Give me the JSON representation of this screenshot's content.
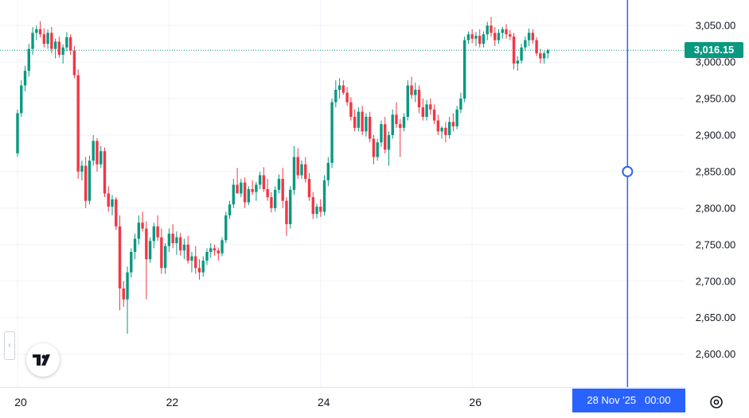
{
  "chart_data": {
    "type": "candlestick",
    "y_ticks": [
      "3,050.00",
      "3,000.00",
      "2,950.00",
      "2,900.00",
      "2,850.00",
      "2,800.00",
      "2,750.00",
      "2,700.00",
      "2,650.00",
      "2,600.00"
    ],
    "y_tick_values": [
      3050,
      3000,
      2950,
      2900,
      2850,
      2800,
      2750,
      2700,
      2650,
      2600
    ],
    "ylim": [
      2555,
      3085
    ],
    "x_ticks": [
      "20",
      "22",
      "24",
      "26"
    ],
    "x_tick_positions": [
      0,
      40,
      80,
      120
    ],
    "current_price": 3016.15,
    "current_price_label": "3,016.15",
    "crosshair": {
      "x_index": 161,
      "price": 2850,
      "date_label": "28 Nov '25",
      "time_label": "00:00"
    },
    "colors": {
      "up": "#089981",
      "down": "#f23645",
      "crosshair": "#2962ff",
      "grid": "#f0f3fa"
    },
    "candles": [
      [
        2875,
        2935,
        2870,
        2930
      ],
      [
        2930,
        2975,
        2925,
        2968
      ],
      [
        2968,
        2995,
        2960,
        2988
      ],
      [
        2988,
        3025,
        2980,
        3018
      ],
      [
        3018,
        3048,
        3010,
        3040
      ],
      [
        3040,
        3050,
        3030,
        3045
      ],
      [
        3045,
        3056,
        3034,
        3038
      ],
      [
        3038,
        3046,
        3020,
        3025
      ],
      [
        3025,
        3045,
        3018,
        3040
      ],
      [
        3040,
        3048,
        3012,
        3018
      ],
      [
        3018,
        3032,
        3005,
        3028
      ],
      [
        3028,
        3035,
        3006,
        3010
      ],
      [
        3010,
        3024,
        2998,
        3020
      ],
      [
        3020,
        3041,
        3015,
        3034
      ],
      [
        3034,
        3038,
        3010,
        3016
      ],
      [
        3016,
        3022,
        2978,
        2982
      ],
      [
        2982,
        2990,
        2840,
        2850
      ],
      [
        2850,
        2865,
        2838,
        2858
      ],
      [
        2858,
        2870,
        2800,
        2810
      ],
      [
        2810,
        2872,
        2805,
        2865
      ],
      [
        2865,
        2900,
        2858,
        2892
      ],
      [
        2892,
        2896,
        2850,
        2860
      ],
      [
        2860,
        2885,
        2855,
        2878
      ],
      [
        2878,
        2883,
        2815,
        2820
      ],
      [
        2820,
        2830,
        2795,
        2802
      ],
      [
        2802,
        2818,
        2790,
        2812
      ],
      [
        2812,
        2815,
        2770,
        2775
      ],
      [
        2775,
        2790,
        2660,
        2690
      ],
      [
        2690,
        2700,
        2665,
        2675
      ],
      [
        2675,
        2720,
        2628,
        2712
      ],
      [
        2712,
        2745,
        2705,
        2740
      ],
      [
        2740,
        2765,
        2730,
        2758
      ],
      [
        2758,
        2790,
        2750,
        2780
      ],
      [
        2780,
        2795,
        2768,
        2772
      ],
      [
        2772,
        2782,
        2675,
        2730
      ],
      [
        2730,
        2760,
        2725,
        2755
      ],
      [
        2755,
        2780,
        2745,
        2775
      ],
      [
        2775,
        2790,
        2755,
        2760
      ],
      [
        2760,
        2772,
        2710,
        2718
      ],
      [
        2718,
        2752,
        2710,
        2748
      ],
      [
        2748,
        2772,
        2740,
        2765
      ],
      [
        2765,
        2778,
        2745,
        2752
      ],
      [
        2752,
        2768,
        2736,
        2760
      ],
      [
        2760,
        2766,
        2735,
        2742
      ],
      [
        2742,
        2758,
        2730,
        2750
      ],
      [
        2750,
        2762,
        2724,
        2728
      ],
      [
        2728,
        2740,
        2712,
        2734
      ],
      [
        2734,
        2748,
        2710,
        2718
      ],
      [
        2718,
        2730,
        2702,
        2712
      ],
      [
        2712,
        2734,
        2706,
        2728
      ],
      [
        2728,
        2745,
        2722,
        2740
      ],
      [
        2740,
        2752,
        2732,
        2745
      ],
      [
        2745,
        2750,
        2735,
        2742
      ],
      [
        2742,
        2746,
        2728,
        2738
      ],
      [
        2738,
        2760,
        2734,
        2756
      ],
      [
        2756,
        2795,
        2752,
        2790
      ],
      [
        2790,
        2810,
        2785,
        2805
      ],
      [
        2805,
        2840,
        2800,
        2832
      ],
      [
        2832,
        2855,
        2825,
        2820
      ],
      [
        2820,
        2840,
        2815,
        2835
      ],
      [
        2835,
        2842,
        2800,
        2808
      ],
      [
        2808,
        2830,
        2804,
        2826
      ],
      [
        2826,
        2838,
        2818,
        2822
      ],
      [
        2822,
        2836,
        2810,
        2832
      ],
      [
        2832,
        2850,
        2826,
        2845
      ],
      [
        2845,
        2856,
        2822,
        2826
      ],
      [
        2826,
        2840,
        2810,
        2815
      ],
      [
        2815,
        2822,
        2794,
        2800
      ],
      [
        2800,
        2830,
        2795,
        2825
      ],
      [
        2825,
        2846,
        2820,
        2840
      ],
      [
        2840,
        2855,
        2800,
        2810
      ],
      [
        2810,
        2815,
        2762,
        2778
      ],
      [
        2778,
        2830,
        2772,
        2825
      ],
      [
        2825,
        2885,
        2818,
        2870
      ],
      [
        2870,
        2882,
        2840,
        2845
      ],
      [
        2845,
        2865,
        2840,
        2860
      ],
      [
        2860,
        2870,
        2835,
        2840
      ],
      [
        2840,
        2848,
        2810,
        2815
      ],
      [
        2815,
        2822,
        2785,
        2792
      ],
      [
        2792,
        2806,
        2786,
        2802
      ],
      [
        2802,
        2812,
        2788,
        2795
      ],
      [
        2795,
        2845,
        2790,
        2838
      ],
      [
        2838,
        2870,
        2830,
        2862
      ],
      [
        2862,
        2950,
        2855,
        2945
      ],
      [
        2945,
        2975,
        2938,
        2962
      ],
      [
        2962,
        2978,
        2950,
        2968
      ],
      [
        2968,
        2975,
        2955,
        2958
      ],
      [
        2958,
        2966,
        2940,
        2945
      ],
      [
        2945,
        2952,
        2920,
        2925
      ],
      [
        2925,
        2935,
        2905,
        2910
      ],
      [
        2910,
        2938,
        2905,
        2932
      ],
      [
        2932,
        2940,
        2900,
        2905
      ],
      [
        2905,
        2930,
        2898,
        2925
      ],
      [
        2925,
        2932,
        2890,
        2895
      ],
      [
        2895,
        2900,
        2860,
        2870
      ],
      [
        2870,
        2895,
        2865,
        2890
      ],
      [
        2890,
        2920,
        2884,
        2915
      ],
      [
        2915,
        2925,
        2875,
        2880
      ],
      [
        2880,
        2905,
        2858,
        2900
      ],
      [
        2900,
        2935,
        2895,
        2928
      ],
      [
        2928,
        2945,
        2910,
        2915
      ],
      [
        2915,
        2922,
        2870,
        2910
      ],
      [
        2910,
        2930,
        2905,
        2925
      ],
      [
        2925,
        2975,
        2920,
        2968
      ],
      [
        2968,
        2980,
        2950,
        2955
      ],
      [
        2955,
        2972,
        2945,
        2962
      ],
      [
        2962,
        2968,
        2930,
        2938
      ],
      [
        2938,
        2950,
        2920,
        2925
      ],
      [
        2925,
        2948,
        2920,
        2942
      ],
      [
        2942,
        2950,
        2928,
        2935
      ],
      [
        2935,
        2942,
        2915,
        2920
      ],
      [
        2920,
        2928,
        2900,
        2905
      ],
      [
        2905,
        2912,
        2895,
        2910
      ],
      [
        2910,
        2918,
        2890,
        2900
      ],
      [
        2900,
        2925,
        2895,
        2918
      ],
      [
        2918,
        2930,
        2905,
        2912
      ],
      [
        2912,
        2940,
        2908,
        2935
      ],
      [
        2935,
        2958,
        2930,
        2950
      ],
      [
        2950,
        3035,
        2945,
        3030
      ],
      [
        3030,
        3042,
        3025,
        3038
      ],
      [
        3038,
        3045,
        3026,
        3032
      ],
      [
        3032,
        3041,
        3022,
        3036
      ],
      [
        3036,
        3045,
        3020,
        3025
      ],
      [
        3025,
        3042,
        3020,
        3038
      ],
      [
        3038,
        3055,
        3030,
        3050
      ],
      [
        3050,
        3062,
        3035,
        3040
      ],
      [
        3040,
        3048,
        3022,
        3030
      ],
      [
        3030,
        3045,
        3025,
        3040
      ],
      [
        3040,
        3048,
        3032,
        3045
      ],
      [
        3045,
        3052,
        3032,
        3038
      ],
      [
        3038,
        3044,
        3030,
        3035
      ],
      [
        3035,
        3040,
        2990,
        2998
      ],
      [
        2998,
        3008,
        2988,
        3002
      ],
      [
        3002,
        3025,
        2998,
        3020
      ],
      [
        3020,
        3035,
        3015,
        3030
      ],
      [
        3030,
        3046,
        3022,
        3040
      ],
      [
        3040,
        3045,
        3025,
        3030
      ],
      [
        3030,
        3034,
        3008,
        3012
      ],
      [
        3012,
        3018,
        2998,
        3005
      ],
      [
        3005,
        3015,
        2998,
        3012
      ],
      [
        3012,
        3018,
        3005,
        3016
      ]
    ]
  },
  "ui": {
    "price_label": "3,016.15",
    "date_label": "28 Nov '25",
    "time_label": "00:00",
    "logo_text": "TV",
    "settings_icon": "gear-icon",
    "collapse_glyph": "‹"
  }
}
